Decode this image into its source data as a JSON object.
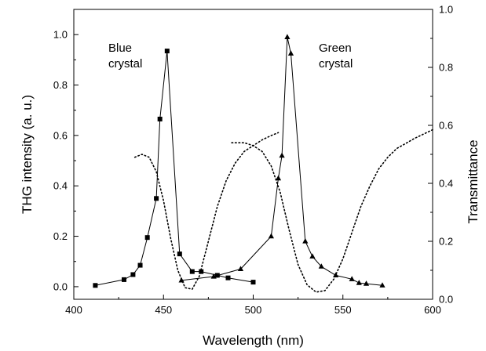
{
  "chart_data": {
    "type": "line",
    "xlabel": "Wavelength (nm)",
    "ylabel_left": "THG intensity (a. u.)",
    "ylabel_right": "Transmittance",
    "xlim": [
      400,
      600
    ],
    "ylim_left": [
      -0.05,
      1.1
    ],
    "ylim_right": [
      0.0,
      1.0
    ],
    "x_ticks": [
      400,
      450,
      500,
      550,
      600
    ],
    "y_left_ticks": [
      "0.0",
      "0.2",
      "0.4",
      "0.6",
      "0.8",
      "1.0"
    ],
    "y_right_ticks": [
      "0.0",
      "0.2",
      "0.4",
      "0.6",
      "0.8",
      "1.0"
    ],
    "grid": false,
    "annotations": [
      {
        "lines": [
          "Blue",
          "crystal"
        ]
      },
      {
        "lines": [
          "Green",
          "crystal"
        ]
      }
    ],
    "series": [
      {
        "axis": "left",
        "style": "line-square-markers",
        "color": "#000000",
        "x": [
          412,
          428,
          433,
          437,
          441,
          446,
          448,
          452,
          459,
          466,
          471,
          480,
          486,
          500
        ],
        "y": [
          0.005,
          0.028,
          0.048,
          0.085,
          0.195,
          0.35,
          0.665,
          0.935,
          0.13,
          0.06,
          0.06,
          0.045,
          0.035,
          0.018
        ]
      },
      {
        "axis": "left",
        "style": "line-triangle-markers",
        "color": "#000000",
        "x": [
          460,
          478,
          493,
          510,
          514,
          516,
          519,
          521,
          529,
          533,
          538,
          546,
          555,
          559,
          563,
          572
        ],
        "y": [
          0.025,
          0.04,
          0.07,
          0.2,
          0.43,
          0.52,
          0.99,
          0.925,
          0.18,
          0.12,
          0.08,
          0.045,
          0.03,
          0.015,
          0.012,
          0.005
        ]
      },
      {
        "axis": "right",
        "style": "dotted",
        "color": "#000000",
        "x": [
          434,
          438,
          442,
          446,
          450,
          454,
          458,
          462,
          466,
          470,
          475,
          480,
          485,
          490,
          495,
          500,
          505,
          510,
          514
        ],
        "y": [
          0.49,
          0.5,
          0.49,
          0.44,
          0.34,
          0.21,
          0.1,
          0.04,
          0.035,
          0.08,
          0.2,
          0.32,
          0.41,
          0.47,
          0.51,
          0.53,
          0.55,
          0.565,
          0.575
        ]
      },
      {
        "axis": "right",
        "style": "dotted",
        "color": "#000000",
        "x": [
          488,
          495,
          500,
          505,
          510,
          515,
          520,
          525,
          530,
          535,
          540,
          545,
          550,
          555,
          560,
          565,
          570,
          575,
          580,
          590,
          600
        ],
        "y": [
          0.54,
          0.54,
          0.53,
          0.51,
          0.46,
          0.37,
          0.24,
          0.12,
          0.05,
          0.025,
          0.03,
          0.07,
          0.14,
          0.23,
          0.32,
          0.39,
          0.45,
          0.49,
          0.52,
          0.555,
          0.585
        ]
      }
    ]
  }
}
